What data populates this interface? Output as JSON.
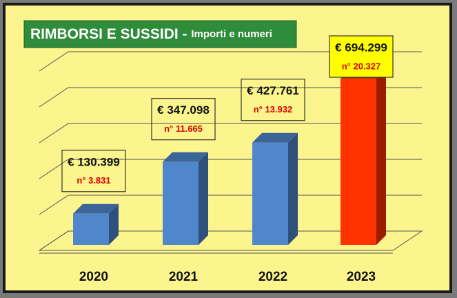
{
  "chart_data": {
    "type": "bar",
    "title": "RIMBORSI E SUSSIDI - ",
    "subtitle": "Importi e numeri",
    "categories": [
      "2020",
      "2021",
      "2022",
      "2023"
    ],
    "values": [
      130399,
      347098,
      427761,
      694299
    ],
    "value_labels": [
      "€ 130.399",
      "€ 347.098",
      "€ 427.761",
      "€  694.299"
    ],
    "counts": [
      3831,
      11665,
      13932,
      20327
    ],
    "count_labels": [
      "n° 3.831",
      "n° 11.665",
      "n° 13.932",
      "n° 20.327"
    ],
    "colors": [
      "#4f86cc",
      "#4f86cc",
      "#4f86cc",
      "#ff3300"
    ],
    "ylim": [
      0,
      750000
    ],
    "yticks": [
      0,
      150000,
      300000,
      450000,
      600000,
      750000
    ],
    "grid": true
  }
}
